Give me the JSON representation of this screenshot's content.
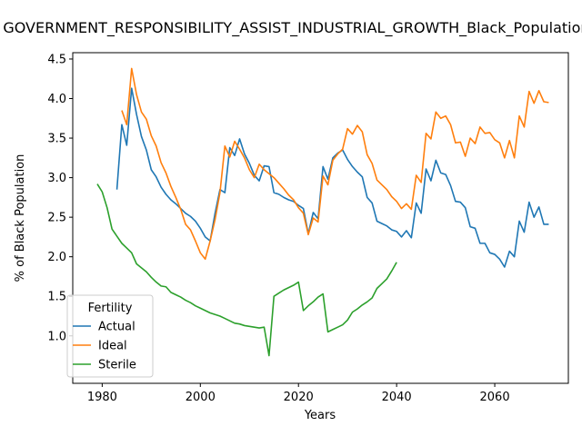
{
  "chart_data": {
    "type": "line",
    "title": "GOVERNMENT_RESPONSIBILITY_ASSIST_INDUSTRIAL_GROWTH_Black_Population_Fertility",
    "xlabel": "Years",
    "ylabel": "% of Black Population",
    "xlim": [
      1974,
      2075
    ],
    "ylim": [
      0.4,
      4.58
    ],
    "x_ticks": [
      1980,
      2000,
      2020,
      2040,
      2060
    ],
    "y_ticks": [
      1.0,
      1.5,
      2.0,
      2.5,
      3.0,
      3.5,
      4.0,
      4.5
    ],
    "x_tick_labels": [
      "1980",
      "2000",
      "2020",
      "2040",
      "2060"
    ],
    "y_tick_labels": [
      "1.0",
      "1.5",
      "2.0",
      "2.5",
      "3.0",
      "3.5",
      "4.0",
      "4.5"
    ],
    "grid": false,
    "legend": {
      "title": "Fertility",
      "position": "lower-left"
    },
    "series": [
      {
        "name": "Actual",
        "color": "#1f77b4",
        "points": [
          [
            1983,
            2.85
          ],
          [
            1984,
            3.67
          ],
          [
            1985,
            3.41
          ],
          [
            1986,
            4.13
          ],
          [
            1987,
            3.8
          ],
          [
            1988,
            3.52
          ],
          [
            1989,
            3.35
          ],
          [
            1990,
            3.1
          ],
          [
            1991,
            3.01
          ],
          [
            1992,
            2.88
          ],
          [
            1993,
            2.79
          ],
          [
            1994,
            2.72
          ],
          [
            1995,
            2.67
          ],
          [
            1996,
            2.61
          ],
          [
            1997,
            2.55
          ],
          [
            1998,
            2.51
          ],
          [
            1999,
            2.45
          ],
          [
            2000,
            2.36
          ],
          [
            2001,
            2.25
          ],
          [
            2002,
            2.2
          ],
          [
            2003,
            2.55
          ],
          [
            2004,
            2.85
          ],
          [
            2005,
            2.81
          ],
          [
            2006,
            3.38
          ],
          [
            2007,
            3.28
          ],
          [
            2008,
            3.49
          ],
          [
            2009,
            3.3
          ],
          [
            2010,
            3.18
          ],
          [
            2011,
            3.03
          ],
          [
            2012,
            2.96
          ],
          [
            2013,
            3.15
          ],
          [
            2014,
            3.14
          ],
          [
            2015,
            2.81
          ],
          [
            2016,
            2.79
          ],
          [
            2017,
            2.75
          ],
          [
            2018,
            2.72
          ],
          [
            2019,
            2.7
          ],
          [
            2020,
            2.65
          ],
          [
            2021,
            2.61
          ],
          [
            2022,
            2.29
          ],
          [
            2023,
            2.56
          ],
          [
            2024,
            2.48
          ],
          [
            2025,
            3.14
          ],
          [
            2026,
            2.98
          ],
          [
            2027,
            3.25
          ],
          [
            2028,
            3.31
          ],
          [
            2029,
            3.35
          ],
          [
            2030,
            3.23
          ],
          [
            2031,
            3.14
          ],
          [
            2032,
            3.07
          ],
          [
            2033,
            3.01
          ],
          [
            2034,
            2.75
          ],
          [
            2035,
            2.68
          ],
          [
            2036,
            2.45
          ],
          [
            2037,
            2.42
          ],
          [
            2038,
            2.39
          ],
          [
            2039,
            2.34
          ],
          [
            2040,
            2.32
          ],
          [
            2041,
            2.25
          ],
          [
            2042,
            2.33
          ],
          [
            2043,
            2.24
          ],
          [
            2044,
            2.68
          ],
          [
            2045,
            2.55
          ],
          [
            2046,
            3.11
          ],
          [
            2047,
            2.96
          ],
          [
            2048,
            3.22
          ],
          [
            2049,
            3.06
          ],
          [
            2050,
            3.04
          ],
          [
            2051,
            2.9
          ],
          [
            2052,
            2.7
          ],
          [
            2053,
            2.69
          ],
          [
            2054,
            2.62
          ],
          [
            2055,
            2.38
          ],
          [
            2056,
            2.36
          ],
          [
            2057,
            2.17
          ],
          [
            2058,
            2.17
          ],
          [
            2059,
            2.05
          ],
          [
            2060,
            2.03
          ],
          [
            2061,
            1.97
          ],
          [
            2062,
            1.87
          ],
          [
            2063,
            2.07
          ],
          [
            2064,
            2.0
          ],
          [
            2065,
            2.45
          ],
          [
            2066,
            2.31
          ],
          [
            2067,
            2.69
          ],
          [
            2068,
            2.5
          ],
          [
            2069,
            2.63
          ],
          [
            2070,
            2.41
          ],
          [
            2071,
            2.41
          ]
        ]
      },
      {
        "name": "Ideal",
        "color": "#ff7f0e",
        "points": [
          [
            1984,
            3.85
          ],
          [
            1985,
            3.67
          ],
          [
            1986,
            4.38
          ],
          [
            1987,
            4.05
          ],
          [
            1988,
            3.83
          ],
          [
            1989,
            3.74
          ],
          [
            1990,
            3.53
          ],
          [
            1991,
            3.4
          ],
          [
            1992,
            3.19
          ],
          [
            1993,
            3.06
          ],
          [
            1994,
            2.89
          ],
          [
            1995,
            2.75
          ],
          [
            1996,
            2.6
          ],
          [
            1997,
            2.41
          ],
          [
            1998,
            2.34
          ],
          [
            1999,
            2.2
          ],
          [
            2000,
            2.05
          ],
          [
            2001,
            1.97
          ],
          [
            2002,
            2.2
          ],
          [
            2003,
            2.47
          ],
          [
            2004,
            2.81
          ],
          [
            2005,
            3.4
          ],
          [
            2006,
            3.26
          ],
          [
            2007,
            3.46
          ],
          [
            2008,
            3.36
          ],
          [
            2009,
            3.25
          ],
          [
            2010,
            3.1
          ],
          [
            2011,
            3.0
          ],
          [
            2012,
            3.17
          ],
          [
            2013,
            3.1
          ],
          [
            2014,
            3.05
          ],
          [
            2015,
            3.0
          ],
          [
            2016,
            2.93
          ],
          [
            2017,
            2.86
          ],
          [
            2018,
            2.78
          ],
          [
            2019,
            2.72
          ],
          [
            2020,
            2.62
          ],
          [
            2021,
            2.55
          ],
          [
            2022,
            2.28
          ],
          [
            2023,
            2.49
          ],
          [
            2024,
            2.44
          ],
          [
            2025,
            3.02
          ],
          [
            2026,
            2.91
          ],
          [
            2027,
            3.22
          ],
          [
            2028,
            3.3
          ],
          [
            2029,
            3.36
          ],
          [
            2030,
            3.62
          ],
          [
            2031,
            3.55
          ],
          [
            2032,
            3.66
          ],
          [
            2033,
            3.58
          ],
          [
            2034,
            3.29
          ],
          [
            2035,
            3.18
          ],
          [
            2036,
            2.97
          ],
          [
            2037,
            2.91
          ],
          [
            2038,
            2.85
          ],
          [
            2039,
            2.76
          ],
          [
            2040,
            2.7
          ],
          [
            2041,
            2.61
          ],
          [
            2042,
            2.67
          ],
          [
            2043,
            2.6
          ],
          [
            2044,
            3.03
          ],
          [
            2045,
            2.94
          ],
          [
            2046,
            3.56
          ],
          [
            2047,
            3.49
          ],
          [
            2048,
            3.83
          ],
          [
            2049,
            3.75
          ],
          [
            2050,
            3.78
          ],
          [
            2051,
            3.67
          ],
          [
            2052,
            3.44
          ],
          [
            2053,
            3.45
          ],
          [
            2054,
            3.27
          ],
          [
            2055,
            3.5
          ],
          [
            2056,
            3.43
          ],
          [
            2057,
            3.64
          ],
          [
            2058,
            3.56
          ],
          [
            2059,
            3.57
          ],
          [
            2060,
            3.48
          ],
          [
            2061,
            3.44
          ],
          [
            2062,
            3.25
          ],
          [
            2063,
            3.47
          ],
          [
            2064,
            3.25
          ],
          [
            2065,
            3.78
          ],
          [
            2066,
            3.64
          ],
          [
            2067,
            4.09
          ],
          [
            2068,
            3.94
          ],
          [
            2069,
            4.1
          ],
          [
            2070,
            3.96
          ],
          [
            2071,
            3.95
          ]
        ]
      },
      {
        "name": "Sterile",
        "color": "#2ca02c",
        "points": [
          [
            1979,
            2.92
          ],
          [
            1980,
            2.82
          ],
          [
            1981,
            2.62
          ],
          [
            1982,
            2.35
          ],
          [
            1983,
            2.26
          ],
          [
            1984,
            2.17
          ],
          [
            1985,
            2.11
          ],
          [
            1986,
            2.05
          ],
          [
            1987,
            1.91
          ],
          [
            1988,
            1.86
          ],
          [
            1989,
            1.81
          ],
          [
            1990,
            1.74
          ],
          [
            1991,
            1.68
          ],
          [
            1992,
            1.63
          ],
          [
            1993,
            1.62
          ],
          [
            1994,
            1.55
          ],
          [
            1995,
            1.52
          ],
          [
            1996,
            1.49
          ],
          [
            1997,
            1.45
          ],
          [
            1998,
            1.42
          ],
          [
            1999,
            1.38
          ],
          [
            2000,
            1.35
          ],
          [
            2001,
            1.32
          ],
          [
            2002,
            1.29
          ],
          [
            2003,
            1.27
          ],
          [
            2004,
            1.25
          ],
          [
            2005,
            1.22
          ],
          [
            2006,
            1.19
          ],
          [
            2007,
            1.16
          ],
          [
            2008,
            1.15
          ],
          [
            2009,
            1.13
          ],
          [
            2010,
            1.12
          ],
          [
            2011,
            1.11
          ],
          [
            2012,
            1.1
          ],
          [
            2013,
            1.11
          ],
          [
            2014,
            0.75
          ],
          [
            2015,
            1.5
          ],
          [
            2016,
            1.54
          ],
          [
            2017,
            1.58
          ],
          [
            2018,
            1.61
          ],
          [
            2019,
            1.64
          ],
          [
            2020,
            1.68
          ],
          [
            2021,
            1.32
          ],
          [
            2022,
            1.38
          ],
          [
            2023,
            1.43
          ],
          [
            2024,
            1.49
          ],
          [
            2025,
            1.53
          ],
          [
            2026,
            1.05
          ],
          [
            2027,
            1.08
          ],
          [
            2028,
            1.11
          ],
          [
            2029,
            1.14
          ],
          [
            2030,
            1.2
          ],
          [
            2031,
            1.3
          ],
          [
            2032,
            1.34
          ],
          [
            2033,
            1.39
          ],
          [
            2034,
            1.43
          ],
          [
            2035,
            1.48
          ],
          [
            2036,
            1.6
          ],
          [
            2037,
            1.66
          ],
          [
            2038,
            1.72
          ],
          [
            2039,
            1.82
          ],
          [
            2040,
            1.93
          ]
        ]
      }
    ]
  }
}
